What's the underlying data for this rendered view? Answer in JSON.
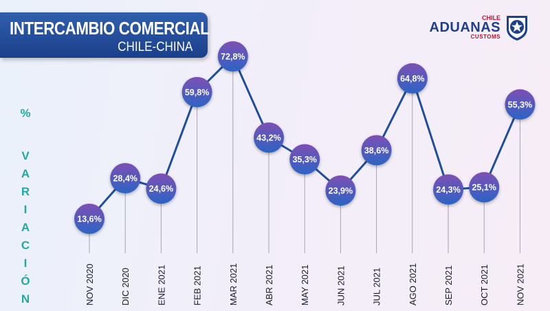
{
  "header": {
    "title": "INTERCAMBIO COMERCIAL",
    "subtitle": "CHILE-CHINA"
  },
  "logo": {
    "country": "CHILE",
    "name": "ADUANAS",
    "sub": "CUSTOMS"
  },
  "chart_data": {
    "type": "line",
    "ylabel": "% VARIACIÓN",
    "categories": [
      "NOV 2020",
      "DIC 2020",
      "ENE 2021",
      "FEB 2021",
      "MAR 2021",
      "ABR 2021",
      "MAY 2021",
      "JUN 2021",
      "JUL 2021",
      "AGO 2021",
      "SEP 2021",
      "OCT 2021",
      "NOV 2021"
    ],
    "values": [
      13.6,
      28.4,
      24.6,
      59.8,
      72.8,
      43.2,
      35.3,
      23.9,
      38.6,
      64.8,
      24.3,
      25.1,
      55.3
    ],
    "data_labels": [
      "13,6%",
      "28,4%",
      "24,6%",
      "59,8%",
      "72,8%",
      "43,2%",
      "35,3%",
      "23,9%",
      "38,6%",
      "64,8%",
      "24,3%",
      "25,1%",
      "55,3%"
    ],
    "colors": {
      "line": "#1f4f9a",
      "marker_top": "#7e4fb4",
      "marker_bottom": "#2b64c4",
      "ylabel": "#1fa9a0"
    }
  }
}
